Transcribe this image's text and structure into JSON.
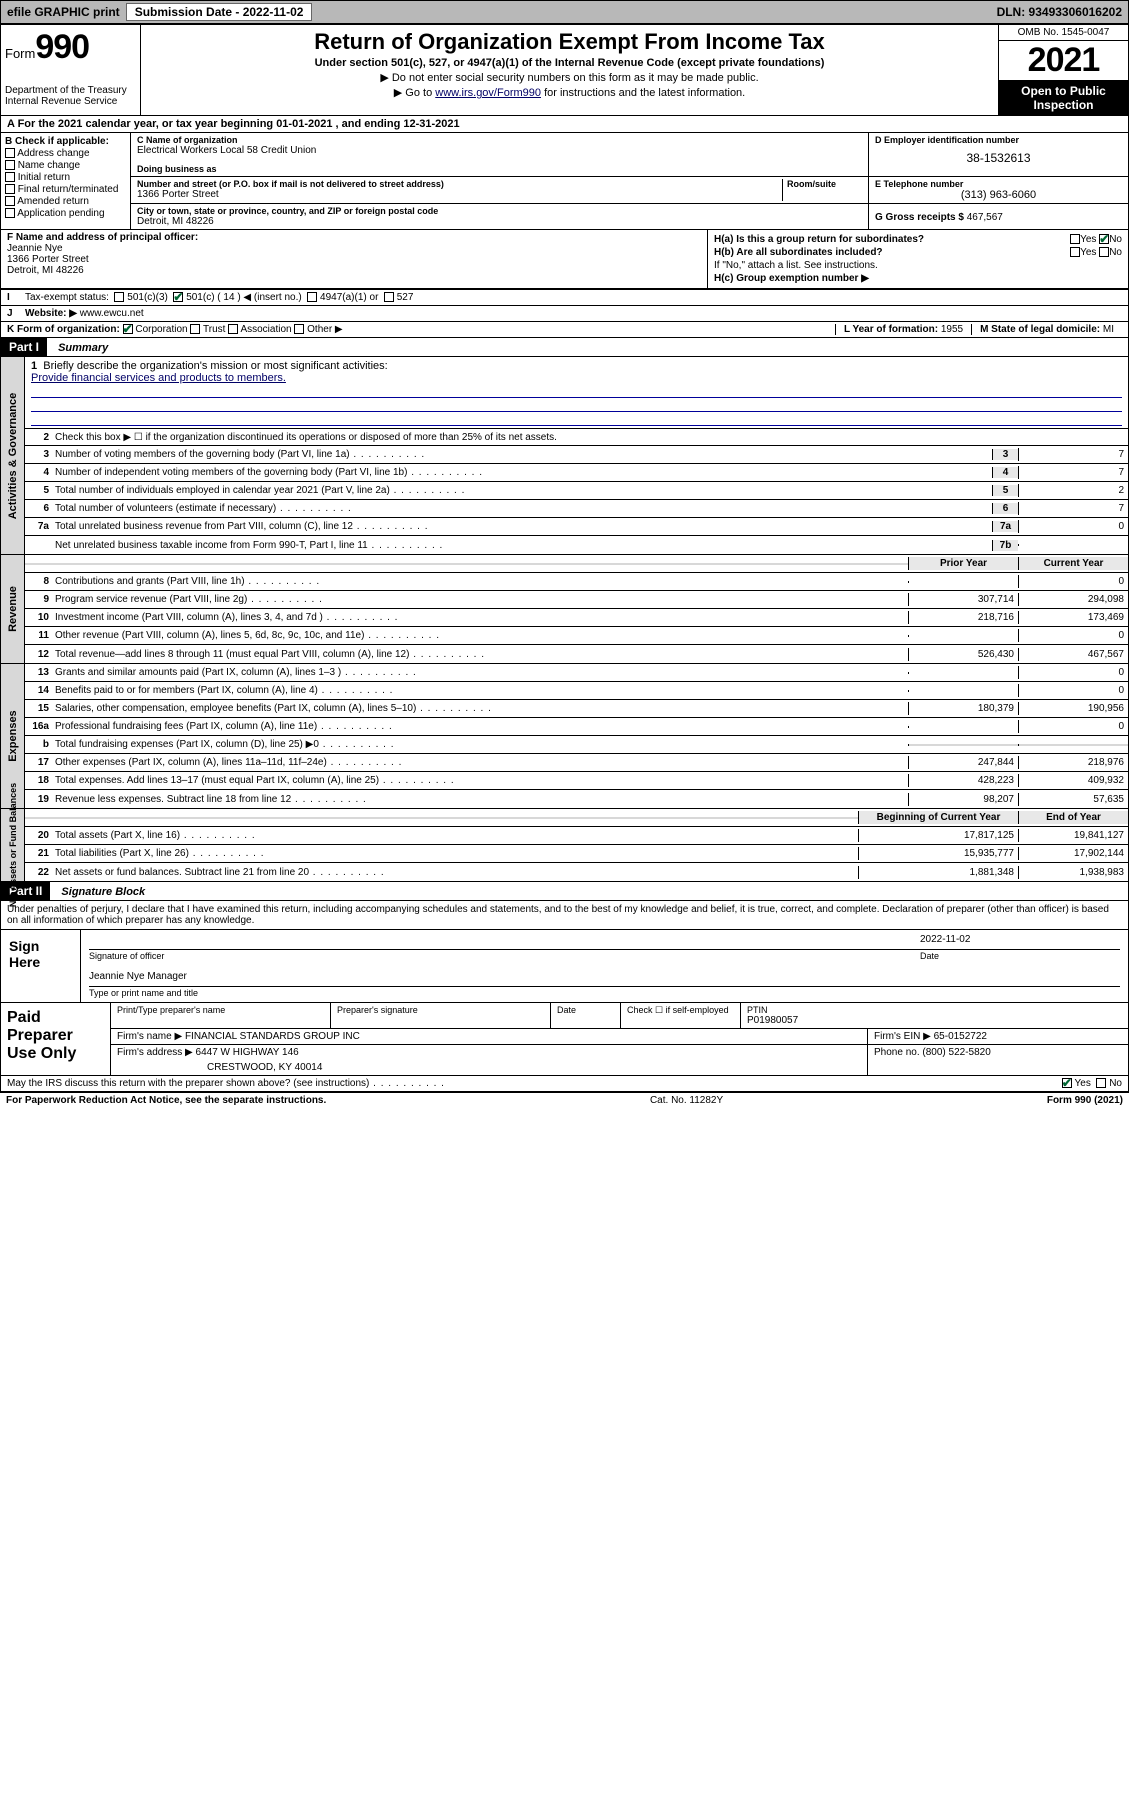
{
  "topbar": {
    "efile": "efile GRAPHIC print",
    "submission_label": "Submission Date - 2022-11-02",
    "dln": "DLN: 93493306016202"
  },
  "header": {
    "form_word": "Form",
    "form_num": "990",
    "title": "Return of Organization Exempt From Income Tax",
    "sub1": "Under section 501(c), 527, or 4947(a)(1) of the Internal Revenue Code (except private foundations)",
    "sub2": "▶ Do not enter social security numbers on this form as it may be made public.",
    "sub3_pre": "▶ Go to ",
    "sub3_link": "www.irs.gov/Form990",
    "sub3_post": " for instructions and the latest information.",
    "dept": "Department of the Treasury\nInternal Revenue Service",
    "omb": "OMB No. 1545-0047",
    "year": "2021",
    "oti": "Open to Public Inspection"
  },
  "row_a": "A For the 2021 calendar year, or tax year beginning 01-01-2021 , and ending 12-31-2021",
  "col_b": {
    "title": "B Check if applicable:",
    "items": [
      "Address change",
      "Name change",
      "Initial return",
      "Final return/terminated",
      "Amended return",
      "Application pending"
    ]
  },
  "col_c": {
    "name_lbl": "C Name of organization",
    "name": "Electrical Workers Local 58 Credit Union",
    "dba_lbl": "Doing business as",
    "dba": "",
    "street_lbl": "Number and street (or P.O. box if mail is not delivered to street address)",
    "room_lbl": "Room/suite",
    "street": "1366 Porter Street",
    "city_lbl": "City or town, state or province, country, and ZIP or foreign postal code",
    "city": "Detroit, MI  48226"
  },
  "col_d": {
    "ein_lbl": "D Employer identification number",
    "ein": "38-1532613",
    "tel_lbl": "E Telephone number",
    "tel": "(313) 963-6060",
    "gross_lbl": "G Gross receipts $",
    "gross": "467,567"
  },
  "f": {
    "lbl": "F Name and address of principal officer:",
    "name": "Jeannie Nye",
    "addr1": "1366 Porter Street",
    "addr2": "Detroit, MI  48226"
  },
  "h": {
    "ha": "H(a)  Is this a group return for subordinates?",
    "ha_yes": "Yes",
    "ha_no": "No",
    "hb": "H(b)  Are all subordinates included?",
    "hb_yes": "Yes",
    "hb_no": "No",
    "hb_note": "If \"No,\" attach a list. See instructions.",
    "hc": "H(c)  Group exemption number ▶"
  },
  "i": {
    "lbl": "Tax-exempt status:",
    "o1": "501(c)(3)",
    "o2": "501(c) ( 14 ) ◀ (insert no.)",
    "o3": "4947(a)(1) or",
    "o4": "527"
  },
  "j": {
    "lbl": "Website: ▶",
    "val": "www.ewcu.net"
  },
  "k": {
    "lbl": "K Form of organization:",
    "o1": "Corporation",
    "o2": "Trust",
    "o3": "Association",
    "o4": "Other ▶"
  },
  "l": {
    "lbl": "L Year of formation:",
    "val": "1955"
  },
  "m": {
    "lbl": "M State of legal domicile:",
    "val": "MI"
  },
  "part1": {
    "hdr": "Part I",
    "title": "Summary",
    "line1_lbl": "Briefly describe the organization's mission or most significant activities:",
    "line1_val": "Provide financial services and products to members.",
    "line2": "Check this box ▶ ☐  if the organization discontinued its operations or disposed of more than 25% of its net assets.",
    "col_prior": "Prior Year",
    "col_current": "Current Year",
    "col_begin": "Beginning of Current Year",
    "col_end": "End of Year",
    "tabs": {
      "gov": "Activities & Governance",
      "rev": "Revenue",
      "exp": "Expenses",
      "net": "Net Assets or Fund Balances"
    },
    "gov_rows": [
      {
        "n": "3",
        "d": "Number of voting members of the governing body (Part VI, line 1a)",
        "box": "3",
        "v": "7"
      },
      {
        "n": "4",
        "d": "Number of independent voting members of the governing body (Part VI, line 1b)",
        "box": "4",
        "v": "7"
      },
      {
        "n": "5",
        "d": "Total number of individuals employed in calendar year 2021 (Part V, line 2a)",
        "box": "5",
        "v": "2"
      },
      {
        "n": "6",
        "d": "Total number of volunteers (estimate if necessary)",
        "box": "6",
        "v": "7"
      },
      {
        "n": "7a",
        "d": "Total unrelated business revenue from Part VIII, column (C), line 12",
        "box": "7a",
        "v": "0"
      },
      {
        "n": "",
        "d": "Net unrelated business taxable income from Form 990-T, Part I, line 11",
        "box": "7b",
        "v": ""
      }
    ],
    "rev_rows": [
      {
        "n": "8",
        "d": "Contributions and grants (Part VIII, line 1h)",
        "p": "",
        "c": "0"
      },
      {
        "n": "9",
        "d": "Program service revenue (Part VIII, line 2g)",
        "p": "307,714",
        "c": "294,098"
      },
      {
        "n": "10",
        "d": "Investment income (Part VIII, column (A), lines 3, 4, and 7d )",
        "p": "218,716",
        "c": "173,469"
      },
      {
        "n": "11",
        "d": "Other revenue (Part VIII, column (A), lines 5, 6d, 8c, 9c, 10c, and 11e)",
        "p": "",
        "c": "0"
      },
      {
        "n": "12",
        "d": "Total revenue—add lines 8 through 11 (must equal Part VIII, column (A), line 12)",
        "p": "526,430",
        "c": "467,567"
      }
    ],
    "exp_rows": [
      {
        "n": "13",
        "d": "Grants and similar amounts paid (Part IX, column (A), lines 1–3 )",
        "p": "",
        "c": "0"
      },
      {
        "n": "14",
        "d": "Benefits paid to or for members (Part IX, column (A), line 4)",
        "p": "",
        "c": "0"
      },
      {
        "n": "15",
        "d": "Salaries, other compensation, employee benefits (Part IX, column (A), lines 5–10)",
        "p": "180,379",
        "c": "190,956"
      },
      {
        "n": "16a",
        "d": "Professional fundraising fees (Part IX, column (A), line 11e)",
        "p": "",
        "c": "0"
      },
      {
        "n": "b",
        "d": "Total fundraising expenses (Part IX, column (D), line 25) ▶0",
        "p": "__gray__",
        "c": "__gray__"
      },
      {
        "n": "17",
        "d": "Other expenses (Part IX, column (A), lines 11a–11d, 11f–24e)",
        "p": "247,844",
        "c": "218,976"
      },
      {
        "n": "18",
        "d": "Total expenses. Add lines 13–17 (must equal Part IX, column (A), line 25)",
        "p": "428,223",
        "c": "409,932"
      },
      {
        "n": "19",
        "d": "Revenue less expenses. Subtract line 18 from line 12",
        "p": "98,207",
        "c": "57,635"
      }
    ],
    "net_rows": [
      {
        "n": "20",
        "d": "Total assets (Part X, line 16)",
        "p": "17,817,125",
        "c": "19,841,127"
      },
      {
        "n": "21",
        "d": "Total liabilities (Part X, line 26)",
        "p": "15,935,777",
        "c": "17,902,144"
      },
      {
        "n": "22",
        "d": "Net assets or fund balances. Subtract line 21 from line 20",
        "p": "1,881,348",
        "c": "1,938,983"
      }
    ]
  },
  "part2": {
    "hdr": "Part II",
    "title": "Signature Block",
    "declaration": "Under penalties of perjury, I declare that I have examined this return, including accompanying schedules and statements, and to the best of my knowledge and belief, it is true, correct, and complete. Declaration of preparer (other than officer) is based on all information of which preparer has any knowledge.",
    "sign_here": "Sign Here",
    "sig_officer_lbl": "Signature of officer",
    "sig_date": "2022-11-02",
    "date_lbl": "Date",
    "officer_name": "Jeannie Nye  Manager",
    "officer_name_lbl": "Type or print name and title"
  },
  "pp": {
    "title": "Paid Preparer Use Only",
    "print_lbl": "Print/Type preparer's name",
    "psig_lbl": "Preparer's signature",
    "date_lbl": "Date",
    "check_lbl": "Check ☐ if self-employed",
    "ptin_lbl": "PTIN",
    "ptin": "P01980057",
    "firm_name_lbl": "Firm's name ▶",
    "firm_name": "FINANCIAL STANDARDS GROUP INC",
    "firm_ein_lbl": "Firm's EIN ▶",
    "firm_ein": "65-0152722",
    "firm_addr_lbl": "Firm's address ▶",
    "firm_addr1": "6447 W HIGHWAY 146",
    "firm_addr2": "CRESTWOOD, KY  40014",
    "phone_lbl": "Phone no.",
    "phone": "(800) 522-5820"
  },
  "discuss": {
    "q": "May the IRS discuss this return with the preparer shown above? (see instructions)",
    "yes": "Yes",
    "no": "No"
  },
  "foot": {
    "l": "For Paperwork Reduction Act Notice, see the separate instructions.",
    "c": "Cat. No. 11282Y",
    "r": "Form 990 (2021)"
  },
  "style": {
    "link_color": "#003399",
    "check_color": "#0a7a2a",
    "gray_bg": "#d8d8d8"
  }
}
